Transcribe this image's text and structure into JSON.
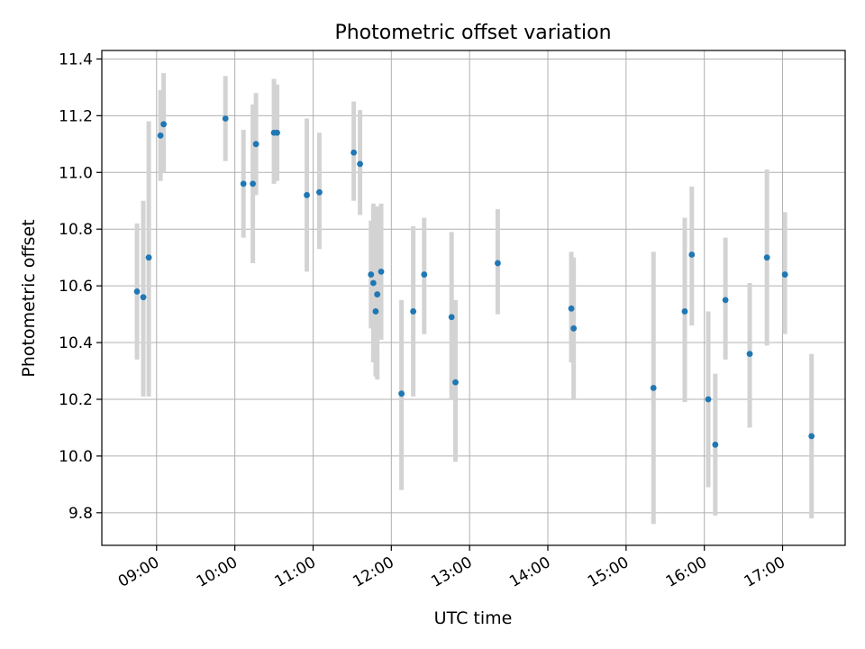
{
  "chart_data": {
    "type": "scatter",
    "title": "Photometric offset variation",
    "xlabel": "UTC time",
    "ylabel": "Photometric offset",
    "x_unit": "hour of day (UTC, decimal)",
    "xlim": [
      8.3,
      17.8
    ],
    "ylim": [
      9.685,
      11.43
    ],
    "xticks": [
      {
        "value": 9,
        "label": "09:00"
      },
      {
        "value": 10,
        "label": "10:00"
      },
      {
        "value": 11,
        "label": "11:00"
      },
      {
        "value": 12,
        "label": "12:00"
      },
      {
        "value": 13,
        "label": "13:00"
      },
      {
        "value": 14,
        "label": "14:00"
      },
      {
        "value": 15,
        "label": "15:00"
      },
      {
        "value": 16,
        "label": "16:00"
      },
      {
        "value": 17,
        "label": "17:00"
      }
    ],
    "yticks": [
      {
        "value": 9.8,
        "label": "9.8"
      },
      {
        "value": 10.0,
        "label": "10.0"
      },
      {
        "value": 10.2,
        "label": "10.2"
      },
      {
        "value": 10.4,
        "label": "10.4"
      },
      {
        "value": 10.6,
        "label": "10.6"
      },
      {
        "value": 10.8,
        "label": "10.8"
      },
      {
        "value": 11.0,
        "label": "11.0"
      },
      {
        "value": 11.2,
        "label": "11.2"
      },
      {
        "value": 11.4,
        "label": "11.4"
      }
    ],
    "grid": true,
    "marker_color": "#1f77b4",
    "errorbar_color": "#d3d3d3",
    "points": [
      {
        "x": 8.75,
        "y": 10.58,
        "lo": 10.34,
        "hi": 10.82
      },
      {
        "x": 8.83,
        "y": 10.56,
        "lo": 10.21,
        "hi": 10.9
      },
      {
        "x": 8.9,
        "y": 10.7,
        "lo": 10.21,
        "hi": 11.18
      },
      {
        "x": 9.05,
        "y": 11.13,
        "lo": 10.97,
        "hi": 11.29
      },
      {
        "x": 9.09,
        "y": 11.17,
        "lo": 11.0,
        "hi": 11.35
      },
      {
        "x": 9.88,
        "y": 11.19,
        "lo": 11.04,
        "hi": 11.34
      },
      {
        "x": 10.11,
        "y": 10.96,
        "lo": 10.77,
        "hi": 11.15
      },
      {
        "x": 10.23,
        "y": 10.96,
        "lo": 10.68,
        "hi": 11.24
      },
      {
        "x": 10.27,
        "y": 11.1,
        "lo": 10.92,
        "hi": 11.28
      },
      {
        "x": 10.5,
        "y": 11.14,
        "lo": 10.96,
        "hi": 11.33
      },
      {
        "x": 10.54,
        "y": 11.14,
        "lo": 10.97,
        "hi": 11.31
      },
      {
        "x": 10.92,
        "y": 10.92,
        "lo": 10.65,
        "hi": 11.19
      },
      {
        "x": 11.08,
        "y": 10.93,
        "lo": 10.73,
        "hi": 11.14
      },
      {
        "x": 11.52,
        "y": 11.07,
        "lo": 10.9,
        "hi": 11.25
      },
      {
        "x": 11.6,
        "y": 11.03,
        "lo": 10.85,
        "hi": 11.22
      },
      {
        "x": 11.74,
        "y": 10.64,
        "lo": 10.45,
        "hi": 10.83
      },
      {
        "x": 11.77,
        "y": 10.61,
        "lo": 10.33,
        "hi": 10.89
      },
      {
        "x": 11.8,
        "y": 10.51,
        "lo": 10.28,
        "hi": 10.75
      },
      {
        "x": 11.82,
        "y": 10.57,
        "lo": 10.27,
        "hi": 10.88
      },
      {
        "x": 11.87,
        "y": 10.65,
        "lo": 10.41,
        "hi": 10.89
      },
      {
        "x": 12.13,
        "y": 10.22,
        "lo": 9.88,
        "hi": 10.55
      },
      {
        "x": 12.28,
        "y": 10.51,
        "lo": 10.21,
        "hi": 10.81
      },
      {
        "x": 12.42,
        "y": 10.64,
        "lo": 10.43,
        "hi": 10.84
      },
      {
        "x": 12.77,
        "y": 10.49,
        "lo": 10.2,
        "hi": 10.79
      },
      {
        "x": 12.82,
        "y": 10.26,
        "lo": 9.98,
        "hi": 10.55
      },
      {
        "x": 13.36,
        "y": 10.68,
        "lo": 10.5,
        "hi": 10.87
      },
      {
        "x": 14.3,
        "y": 10.52,
        "lo": 10.33,
        "hi": 10.72
      },
      {
        "x": 14.33,
        "y": 10.45,
        "lo": 10.2,
        "hi": 10.7
      },
      {
        "x": 15.35,
        "y": 10.24,
        "lo": 9.76,
        "hi": 10.72
      },
      {
        "x": 15.75,
        "y": 10.51,
        "lo": 10.19,
        "hi": 10.84
      },
      {
        "x": 15.84,
        "y": 10.71,
        "lo": 10.46,
        "hi": 10.95
      },
      {
        "x": 16.05,
        "y": 10.2,
        "lo": 9.89,
        "hi": 10.51
      },
      {
        "x": 16.14,
        "y": 10.04,
        "lo": 9.79,
        "hi": 10.29
      },
      {
        "x": 16.27,
        "y": 10.55,
        "lo": 10.34,
        "hi": 10.77
      },
      {
        "x": 16.58,
        "y": 10.36,
        "lo": 10.1,
        "hi": 10.61
      },
      {
        "x": 16.8,
        "y": 10.7,
        "lo": 10.39,
        "hi": 11.01
      },
      {
        "x": 17.03,
        "y": 10.64,
        "lo": 10.43,
        "hi": 10.86
      },
      {
        "x": 17.37,
        "y": 10.07,
        "lo": 9.78,
        "hi": 10.36
      }
    ]
  }
}
